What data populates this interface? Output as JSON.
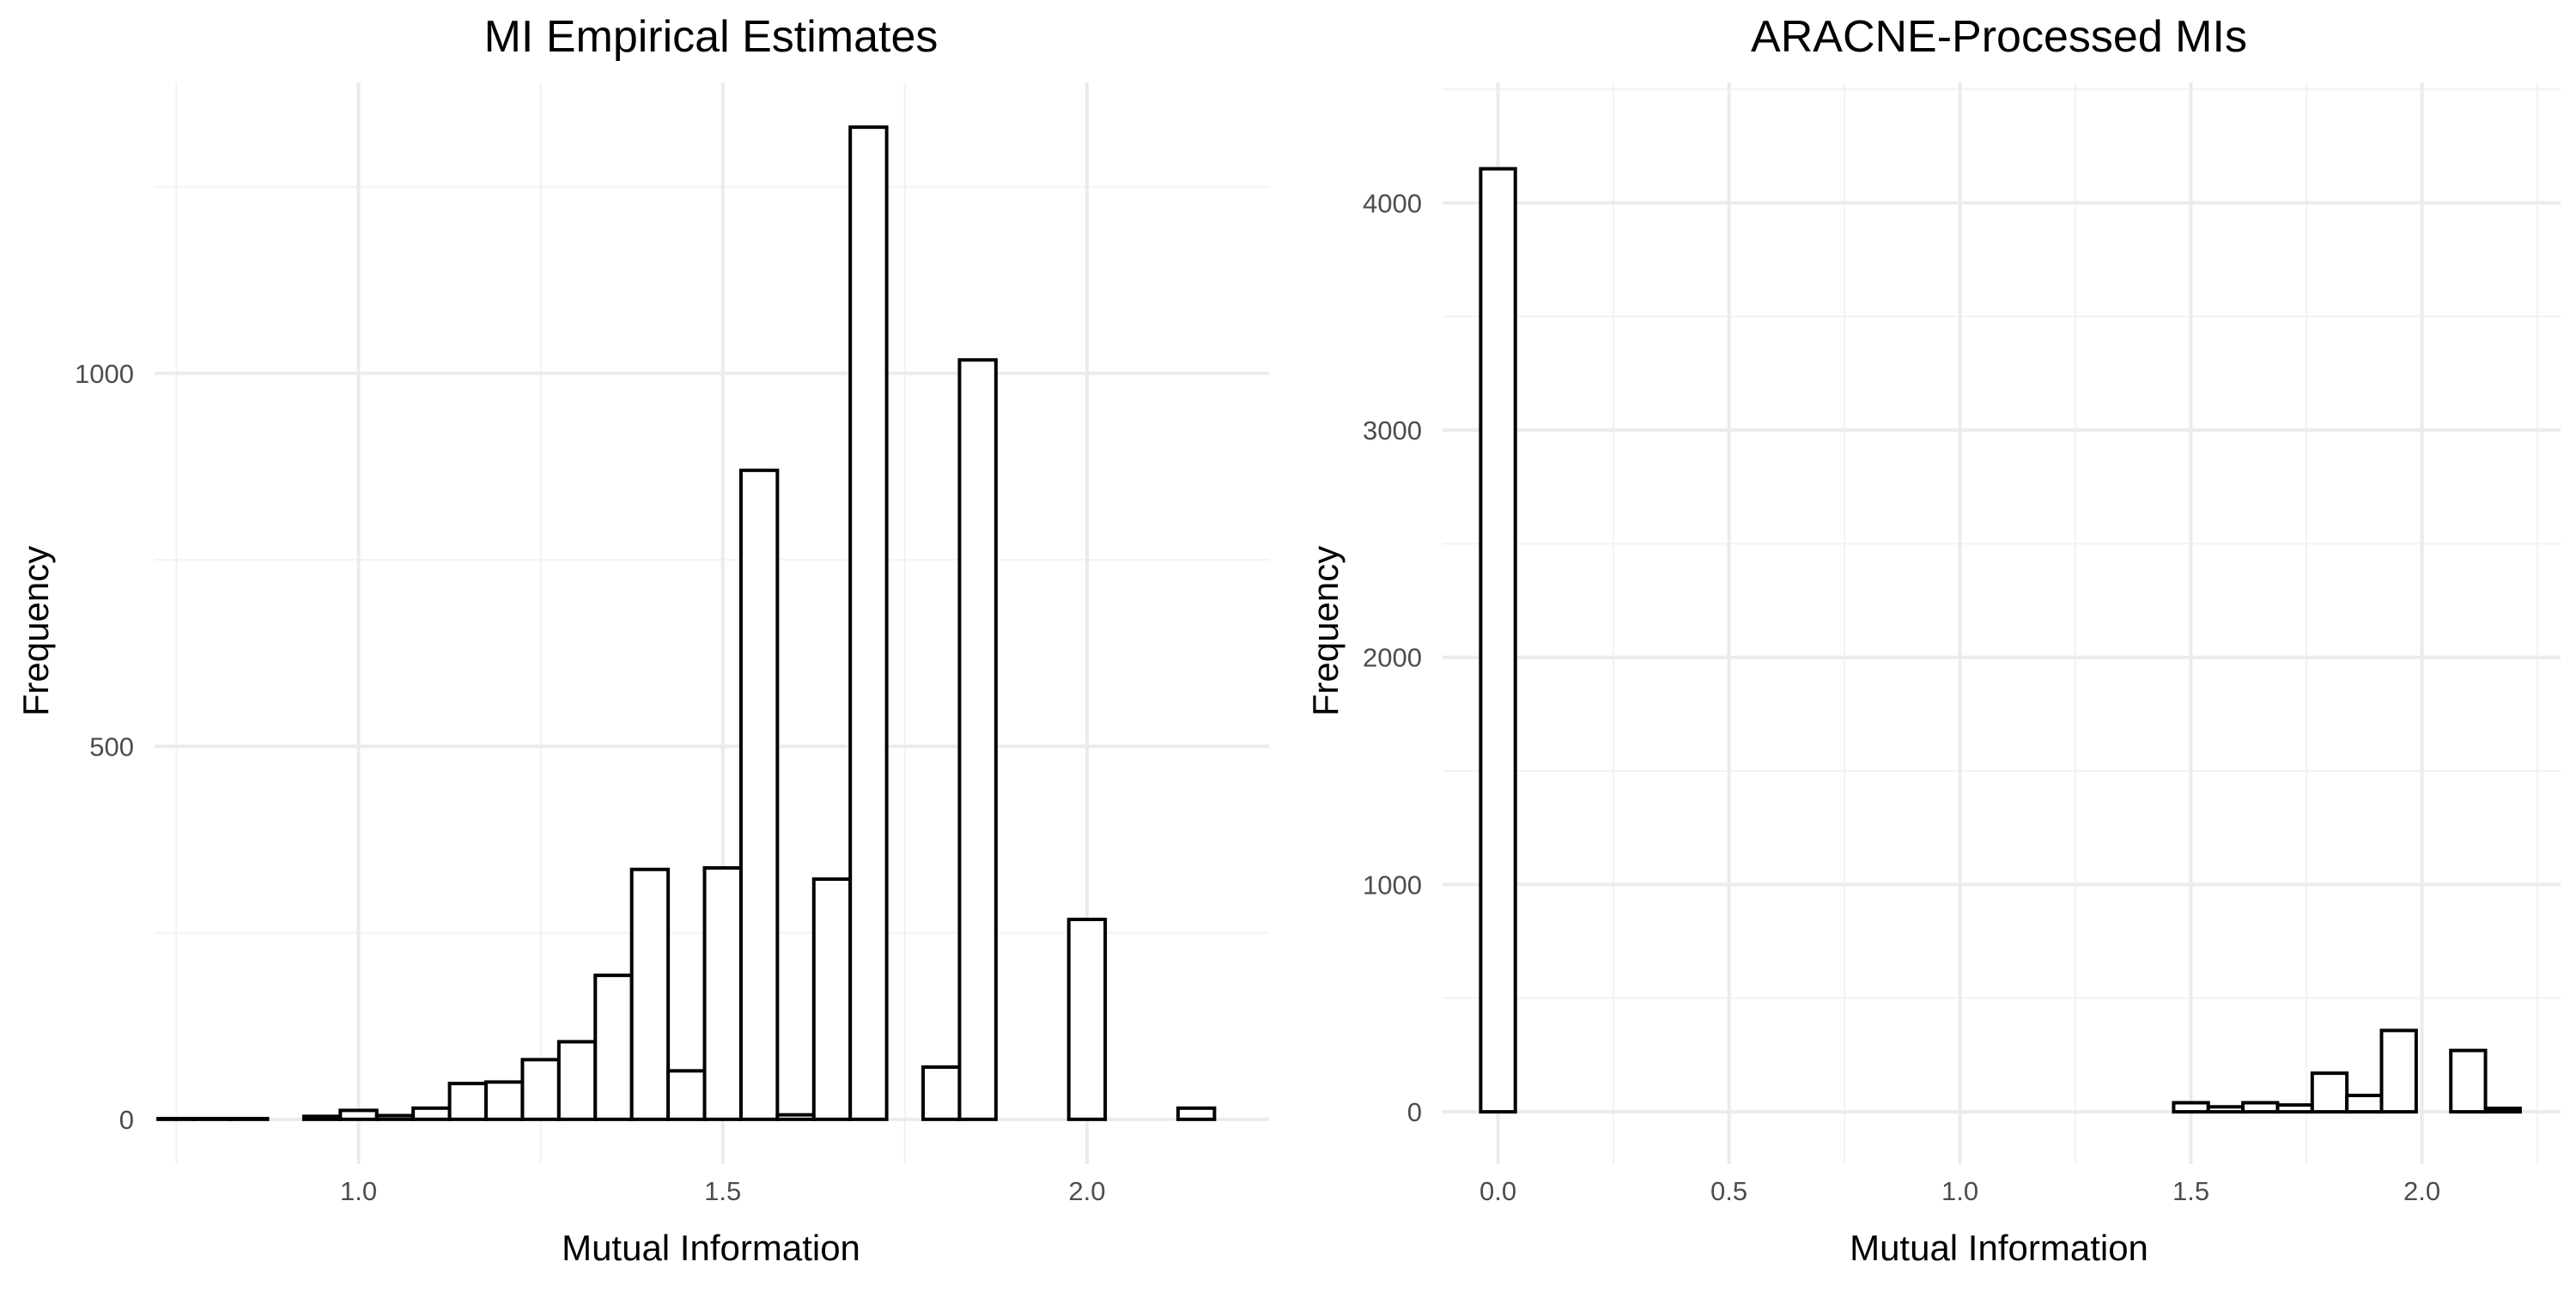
{
  "chart_data": [
    {
      "type": "bar",
      "title": "MI Empirical Estimates",
      "xlabel": "Mutual Information",
      "ylabel": "Frequency",
      "xlim": [
        0.72,
        2.25
      ],
      "ylim": [
        -60,
        1390
      ],
      "x_ticks": [
        1.0,
        1.5,
        2.0
      ],
      "x_tick_labels": [
        "1.0",
        "1.5",
        "2.0"
      ],
      "y_ticks": [
        0,
        500,
        1000
      ],
      "y_tick_labels": [
        "0",
        "500",
        "1000"
      ],
      "grid": true,
      "bin_width": 0.05,
      "x": [
        0.75,
        0.8,
        0.85,
        0.9,
        0.95,
        1.0,
        1.05,
        1.1,
        1.15,
        1.2,
        1.25,
        1.3,
        1.35,
        1.4,
        1.45,
        1.5,
        1.55,
        1.6,
        1.65,
        1.7,
        1.75,
        1.8,
        1.85,
        1.9,
        1.95,
        2.0,
        2.05,
        2.1,
        2.15
      ],
      "values": [
        1,
        1,
        1,
        0,
        4,
        12,
        5,
        15,
        48,
        50,
        80,
        104,
        193,
        335,
        65,
        337,
        870,
        6,
        322,
        1330,
        0,
        70,
        1018,
        0,
        0,
        268,
        0,
        0,
        15
      ]
    },
    {
      "type": "bar",
      "title": "ARACNE-Processed MIs",
      "xlabel": "Mutual Information",
      "ylabel": "Frequency",
      "xlim": [
        -0.12,
        2.3
      ],
      "ylim": [
        -230,
        4530
      ],
      "x_ticks": [
        0.0,
        0.5,
        1.0,
        1.5,
        2.0
      ],
      "x_tick_labels": [
        "0.0",
        "0.5",
        "1.0",
        "1.5",
        "2.0"
      ],
      "y_ticks": [
        0,
        1000,
        2000,
        3000,
        4000
      ],
      "y_tick_labels": [
        "0",
        "1000",
        "2000",
        "3000",
        "4000"
      ],
      "grid": true,
      "bin_width": 0.075,
      "x": [
        0.0,
        0.075,
        0.15,
        0.225,
        0.3,
        0.375,
        0.45,
        0.525,
        0.6,
        0.675,
        0.75,
        0.825,
        0.9,
        0.975,
        1.05,
        1.125,
        1.2,
        1.275,
        1.35,
        1.425,
        1.5,
        1.575,
        1.65,
        1.725,
        1.8,
        1.875,
        1.95,
        2.025,
        2.1,
        2.175
      ],
      "values": [
        4150,
        0,
        0,
        0,
        0,
        0,
        0,
        0,
        0,
        0,
        0,
        0,
        0,
        0,
        0,
        0,
        0,
        0,
        0,
        0,
        40,
        22,
        40,
        30,
        170,
        72,
        358,
        0,
        270,
        15
      ]
    }
  ]
}
